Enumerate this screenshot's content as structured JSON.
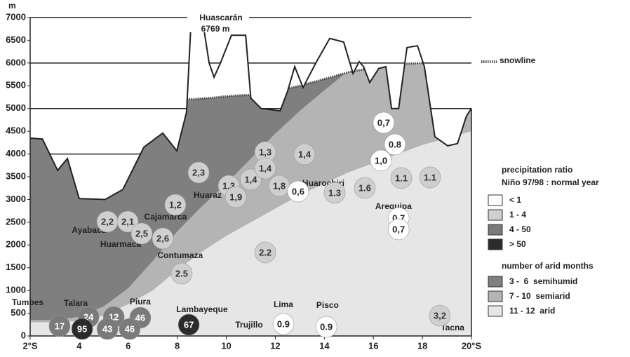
{
  "chart_data": {
    "type": "profile",
    "y_unit": "m",
    "xlim": [
      2,
      20
    ],
    "ylim": [
      0,
      7000
    ],
    "xticks": [
      {
        "value": 2,
        "label": "2°S"
      },
      4,
      6,
      8,
      10,
      12,
      14,
      16,
      18,
      {
        "value": 20,
        "label": "20°S"
      }
    ],
    "yticks": [
      0,
      500,
      1000,
      1500,
      2000,
      2500,
      3000,
      3500,
      4000,
      4500,
      5000,
      5500,
      6000,
      6500,
      7000
    ],
    "grid_ticks": [
      1000,
      2000,
      3000,
      4000,
      5000,
      6000,
      7000
    ],
    "terrain": {
      "x": [
        2,
        2.5,
        3.12,
        3.52,
        4.0,
        5.06,
        5.78,
        6.64,
        7.41,
        7.98,
        8.38,
        8.55,
        9.07,
        9.3,
        9.5,
        9.76,
        10.21,
        10.79,
        11.0,
        11.42,
        12.2,
        12.5,
        12.79,
        13.13,
        13.65,
        14.22,
        14.79,
        15.17,
        15.42,
        15.6,
        15.85,
        16.22,
        16.51,
        16.74,
        17.03,
        17.37,
        17.8,
        18.08,
        18.51,
        19.03,
        19.43,
        19.8,
        20
      ],
      "values": [
        4350,
        4330,
        3640,
        3900,
        3020,
        3000,
        3220,
        4150,
        4460,
        4070,
        4920,
        6770,
        6800,
        6000,
        5690,
        6000,
        6610,
        6610,
        5230,
        5000,
        4950,
        5380,
        5920,
        5460,
        6000,
        6540,
        6460,
        5770,
        6030,
        5920,
        5570,
        5880,
        5920,
        5000,
        5000,
        6340,
        6380,
        5920,
        4380,
        4180,
        4230,
        4840,
        5000
      ]
    },
    "snowline": {
      "name": "snowline",
      "color": "#444",
      "x": [
        8.4,
        9.3,
        10.2,
        11.0,
        11.4,
        12.2,
        13.0,
        14.0,
        15.0,
        16.0,
        17.0,
        18.0
      ],
      "values": [
        5200,
        5230,
        5280,
        5300,
        5320,
        5400,
        5500,
        5650,
        5800,
        5900,
        5980,
        6000
      ]
    },
    "zones_title": "number of arid months",
    "zones": [
      {
        "name": "3 -  6  semihumid",
        "color": "#7f7f7f"
      },
      {
        "name": "7 - 10  semiarid",
        "color": "#b4b4b4",
        "x": [
          2,
          3,
          4,
          5,
          6,
          7,
          8,
          9,
          10,
          11,
          12,
          13,
          14,
          14.8
        ],
        "values": [
          350,
          350,
          420,
          650,
          1050,
          1650,
          2300,
          2850,
          3350,
          3900,
          4450,
          4950,
          5400,
          5750
        ]
      },
      {
        "name": "11 - 12  arid",
        "color": "#e6e6e6",
        "x": [
          2,
          3,
          4,
          5,
          6,
          7,
          8,
          9,
          10,
          11,
          12,
          13,
          14,
          15,
          16,
          17,
          18,
          19,
          20
        ],
        "values": [
          300,
          300,
          330,
          450,
          700,
          1000,
          1450,
          1850,
          2200,
          2500,
          2800,
          3100,
          3350,
          3600,
          3800,
          4000,
          4200,
          4350,
          4500
        ]
      }
    ],
    "precip_title": [
      "precipitation ratio",
      "Niño 97/98 : normal year"
    ],
    "precip_classes": [
      {
        "name": "< 1",
        "color": "#ffffff",
        "text_color": "#222"
      },
      {
        "name": "1 -  4",
        "color": "#cfcfcf",
        "text_color": "#333"
      },
      {
        "name": "4 - 50",
        "color": "#7a7a7a",
        "text_color": "#ffffff"
      },
      {
        "name": "> 50",
        "color": "#2b2b2b",
        "text_color": "#ffffff"
      }
    ],
    "markers": {
      "x": [
        5.15,
        5.98,
        6.55,
        7.41,
        7.92,
        8.87,
        10.1,
        10.39,
        11.0,
        11.59,
        11.59,
        12.16,
        12.93,
        13.19,
        14.42,
        15.65,
        17.14,
        18.31,
        16.42,
        16.88,
        16.31,
        17.03,
        17.03,
        8.18,
        11.59,
        3.2,
        4.38,
        4.12,
        5.41,
        5.15,
        6.49,
        6.06,
        8.47,
        12.33,
        14.08,
        18.71
      ],
      "y": [
        2513,
        2513,
        2251,
        2143,
        2883,
        3593,
        3300,
        3053,
        3439,
        4040,
        3685,
        3300,
        3176,
        3994,
        3146,
        3254,
        3470,
        3485,
        4688,
        4210,
        3855,
        2590,
        2344,
        1372,
        1835,
        216,
        416,
        154,
        416,
        154,
        401,
        154,
        247,
        262,
        200,
        447
      ],
      "values": [
        2.2,
        2.1,
        2.5,
        2.6,
        1.2,
        2.3,
        1.3,
        1.9,
        1.4,
        1.3,
        1.4,
        1.8,
        0.6,
        1.4,
        1.3,
        1.6,
        1.1,
        1.1,
        0.7,
        0.8,
        1.0,
        0.7,
        0.7,
        2.5,
        2.2,
        17,
        24,
        95,
        12,
        43,
        46,
        46,
        67,
        0.9,
        0.9,
        3.2
      ],
      "value_labels": [
        "2,2",
        "2,1",
        "2,5",
        "2,6",
        "1,2",
        "2,3",
        "1,3",
        "1,9",
        "1,4",
        "1,3",
        "1,4",
        "1,8",
        "0,6",
        "1,4",
        "1.3",
        "1.6",
        "1.1",
        "1.1",
        "0,7",
        "0.8",
        "1,0",
        "0,7",
        "0,7",
        "2.5",
        "2.2",
        "17",
        "24",
        "95",
        "12",
        "43",
        "46",
        "46",
        "67",
        "0.9",
        "0.9",
        "3,2"
      ],
      "class": [
        1,
        1,
        1,
        1,
        1,
        1,
        1,
        1,
        1,
        1,
        1,
        1,
        0,
        1,
        1,
        1,
        1,
        1,
        0,
        0,
        0,
        0,
        0,
        1,
        1,
        2,
        2,
        3,
        2,
        2,
        2,
        2,
        3,
        0,
        0,
        1
      ]
    },
    "places": {
      "names": [
        "Tumbes",
        "Talara",
        "Piura",
        "Lambayeque",
        "Trujillo",
        "Lima",
        "Pisco",
        "Tacna",
        "Ayabaca",
        "Huarmaca",
        "Cajamarca",
        "Contumaza",
        "Huaraz",
        "Huarochiri",
        "Arequipa"
      ],
      "x": [
        1.9,
        3.86,
        6.49,
        9.01,
        10.93,
        12.33,
        14.13,
        19.23,
        4.4,
        5.69,
        7.52,
        8.12,
        9.24,
        13.96,
        16.82
      ],
      "y": [
        725,
        709,
        740,
        570,
        231,
        678,
        663,
        170,
        2313,
        2004,
        2606,
        1758,
        3084,
        3346,
        2837
      ]
    },
    "peak": {
      "name": "Huascarán",
      "label": "6769 m",
      "x": 9.67,
      "elevation": 6769
    }
  }
}
